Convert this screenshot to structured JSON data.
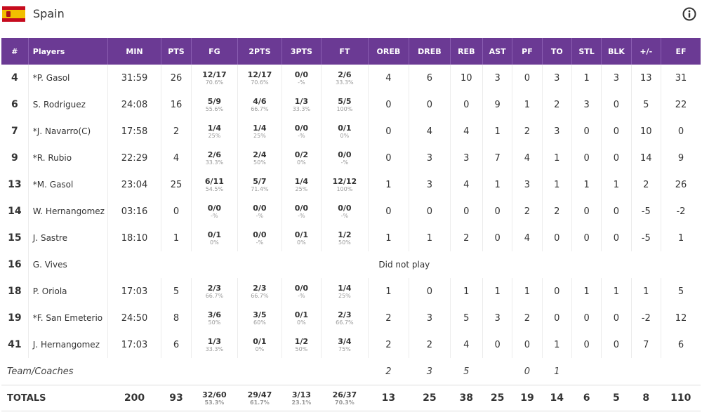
{
  "team": {
    "name": "Spain"
  },
  "columns": [
    "#",
    "Players",
    "MIN",
    "PTS",
    "FG",
    "2PTS",
    "3PTS",
    "FT",
    "OREB",
    "DREB",
    "REB",
    "AST",
    "PF",
    "TO",
    "STL",
    "BLK",
    "+/-",
    "EF"
  ],
  "players": [
    {
      "num": "4",
      "name": "*P. Gasol",
      "min": "31:59",
      "pts": "26",
      "fg": "12/17",
      "fg_pct": "70.6%",
      "p2": "12/17",
      "p2_pct": "70.6%",
      "p3": "0/0",
      "p3_pct": "-%",
      "ft": "2/6",
      "ft_pct": "33.3%",
      "oreb": "4",
      "dreb": "6",
      "reb": "10",
      "ast": "3",
      "pf": "0",
      "to": "3",
      "stl": "1",
      "blk": "3",
      "pm": "13",
      "ef": "31"
    },
    {
      "num": "6",
      "name": "S. Rodriguez",
      "min": "24:08",
      "pts": "16",
      "fg": "5/9",
      "fg_pct": "55.6%",
      "p2": "4/6",
      "p2_pct": "66.7%",
      "p3": "1/3",
      "p3_pct": "33.3%",
      "ft": "5/5",
      "ft_pct": "100%",
      "oreb": "0",
      "dreb": "0",
      "reb": "0",
      "ast": "9",
      "pf": "1",
      "to": "2",
      "stl": "3",
      "blk": "0",
      "pm": "5",
      "ef": "22"
    },
    {
      "num": "7",
      "name": "*J. Navarro(C)",
      "min": "17:58",
      "pts": "2",
      "fg": "1/4",
      "fg_pct": "25%",
      "p2": "1/4",
      "p2_pct": "25%",
      "p3": "0/0",
      "p3_pct": "-%",
      "ft": "0/1",
      "ft_pct": "0%",
      "oreb": "0",
      "dreb": "4",
      "reb": "4",
      "ast": "1",
      "pf": "2",
      "to": "3",
      "stl": "0",
      "blk": "0",
      "pm": "10",
      "ef": "0"
    },
    {
      "num": "9",
      "name": "*R. Rubio",
      "min": "22:29",
      "pts": "4",
      "fg": "2/6",
      "fg_pct": "33.3%",
      "p2": "2/4",
      "p2_pct": "50%",
      "p3": "0/2",
      "p3_pct": "0%",
      "ft": "0/0",
      "ft_pct": "-%",
      "oreb": "0",
      "dreb": "3",
      "reb": "3",
      "ast": "7",
      "pf": "4",
      "to": "1",
      "stl": "0",
      "blk": "0",
      "pm": "14",
      "ef": "9"
    },
    {
      "num": "13",
      "name": "*M. Gasol",
      "min": "23:04",
      "pts": "25",
      "fg": "6/11",
      "fg_pct": "54.5%",
      "p2": "5/7",
      "p2_pct": "71.4%",
      "p3": "1/4",
      "p3_pct": "25%",
      "ft": "12/12",
      "ft_pct": "100%",
      "oreb": "1",
      "dreb": "3",
      "reb": "4",
      "ast": "1",
      "pf": "3",
      "to": "1",
      "stl": "1",
      "blk": "1",
      "pm": "2",
      "ef": "26"
    },
    {
      "num": "14",
      "name": "W. Hernangomez",
      "min": "03:16",
      "pts": "0",
      "fg": "0/0",
      "fg_pct": "-%",
      "p2": "0/0",
      "p2_pct": "-%",
      "p3": "0/0",
      "p3_pct": "-%",
      "ft": "0/0",
      "ft_pct": "-%",
      "oreb": "0",
      "dreb": "0",
      "reb": "0",
      "ast": "0",
      "pf": "2",
      "to": "2",
      "stl": "0",
      "blk": "0",
      "pm": "-5",
      "ef": "-2"
    },
    {
      "num": "15",
      "name": "J. Sastre",
      "min": "18:10",
      "pts": "1",
      "fg": "0/1",
      "fg_pct": "0%",
      "p2": "0/0",
      "p2_pct": "-%",
      "p3": "0/1",
      "p3_pct": "0%",
      "ft": "1/2",
      "ft_pct": "50%",
      "oreb": "1",
      "dreb": "1",
      "reb": "2",
      "ast": "0",
      "pf": "4",
      "to": "0",
      "stl": "0",
      "blk": "0",
      "pm": "-5",
      "ef": "1"
    },
    {
      "num": "16",
      "name": "G. Vives",
      "dnp": "Did not play"
    },
    {
      "num": "18",
      "name": "P. Oriola",
      "min": "17:03",
      "pts": "5",
      "fg": "2/3",
      "fg_pct": "66.7%",
      "p2": "2/3",
      "p2_pct": "66.7%",
      "p3": "0/0",
      "p3_pct": "-%",
      "ft": "1/4",
      "ft_pct": "25%",
      "oreb": "1",
      "dreb": "0",
      "reb": "1",
      "ast": "1",
      "pf": "1",
      "to": "0",
      "stl": "1",
      "blk": "1",
      "pm": "1",
      "ef": "5"
    },
    {
      "num": "19",
      "name": "*F. San Emeterio",
      "min": "24:50",
      "pts": "8",
      "fg": "3/6",
      "fg_pct": "50%",
      "p2": "3/5",
      "p2_pct": "60%",
      "p3": "0/1",
      "p3_pct": "0%",
      "ft": "2/3",
      "ft_pct": "66.7%",
      "oreb": "2",
      "dreb": "3",
      "reb": "5",
      "ast": "3",
      "pf": "2",
      "to": "0",
      "stl": "0",
      "blk": "0",
      "pm": "-2",
      "ef": "12"
    },
    {
      "num": "41",
      "name": "J. Hernangomez",
      "min": "17:03",
      "pts": "6",
      "fg": "1/3",
      "fg_pct": "33.3%",
      "p2": "0/1",
      "p2_pct": "0%",
      "p3": "1/2",
      "p3_pct": "50%",
      "ft": "3/4",
      "ft_pct": "75%",
      "oreb": "2",
      "dreb": "2",
      "reb": "4",
      "ast": "0",
      "pf": "0",
      "to": "1",
      "stl": "0",
      "blk": "0",
      "pm": "7",
      "ef": "6"
    }
  ],
  "team_coaches": {
    "label": "Team/Coaches",
    "oreb": "2",
    "dreb": "3",
    "reb": "5",
    "pf": "0",
    "to": "1"
  },
  "totals": {
    "label": "TOTALS",
    "min": "200",
    "pts": "93",
    "fg": "32/60",
    "fg_pct": "53.3%",
    "p2": "29/47",
    "p2_pct": "61.7%",
    "p3": "3/13",
    "p3_pct": "23.1%",
    "ft": "26/37",
    "ft_pct": "70.3%",
    "oreb": "13",
    "dreb": "25",
    "reb": "38",
    "ast": "25",
    "pf": "19",
    "to": "14",
    "stl": "6",
    "blk": "5",
    "pm": "8",
    "ef": "110"
  }
}
